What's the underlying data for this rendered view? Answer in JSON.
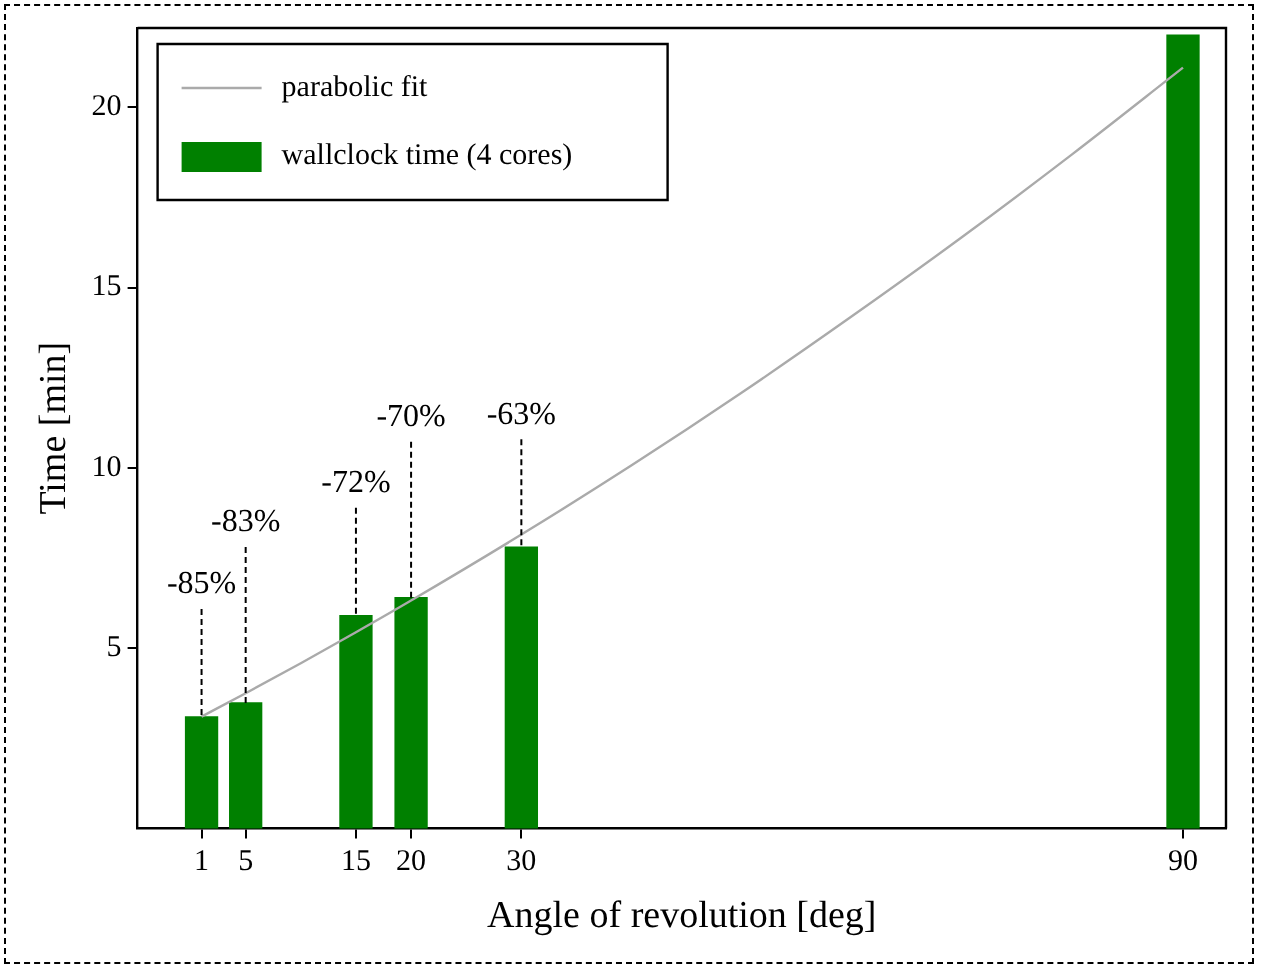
{
  "chart_data": {
    "type": "bar",
    "xlabel": "Angle of revolution [deg]",
    "ylabel": "Time [min]",
    "xlim": [
      -4.8,
      93.9
    ],
    "xticks": [
      1,
      5,
      15,
      20,
      30,
      90
    ],
    "ylim": [
      0,
      22.2
    ],
    "yticks": [
      5,
      10,
      15,
      20
    ],
    "x": [
      1,
      5,
      15,
      20,
      30,
      90
    ],
    "series": [
      {
        "name": "parabolic fit",
        "type": "line",
        "color": "#aaaaaa",
        "x": [
          1,
          5,
          10,
          15,
          20,
          30,
          40,
          50,
          60,
          70,
          80,
          90
        ],
        "values": [
          3.1,
          3.75,
          4.58,
          5.44,
          6.32,
          8.15,
          10.07,
          12.09,
          14.21,
          16.41,
          18.71,
          21.1
        ]
      },
      {
        "name": "wallclock time (4 cores)",
        "color": "#008000",
        "values": [
          3.09,
          3.48,
          5.9,
          6.4,
          7.8,
          22.0
        ]
      }
    ],
    "annotations": [
      {
        "text": "-85%",
        "x": 1,
        "y": 3.09
      },
      {
        "text": "-83%",
        "x": 5,
        "y": 3.48
      },
      {
        "text": "-72%",
        "x": 15,
        "y": 5.9
      },
      {
        "text": "-70%",
        "x": 20,
        "y": 6.4
      },
      {
        "text": "-63%",
        "x": 30,
        "y": 7.8
      }
    ],
    "legend": "top left",
    "grid": false
  }
}
